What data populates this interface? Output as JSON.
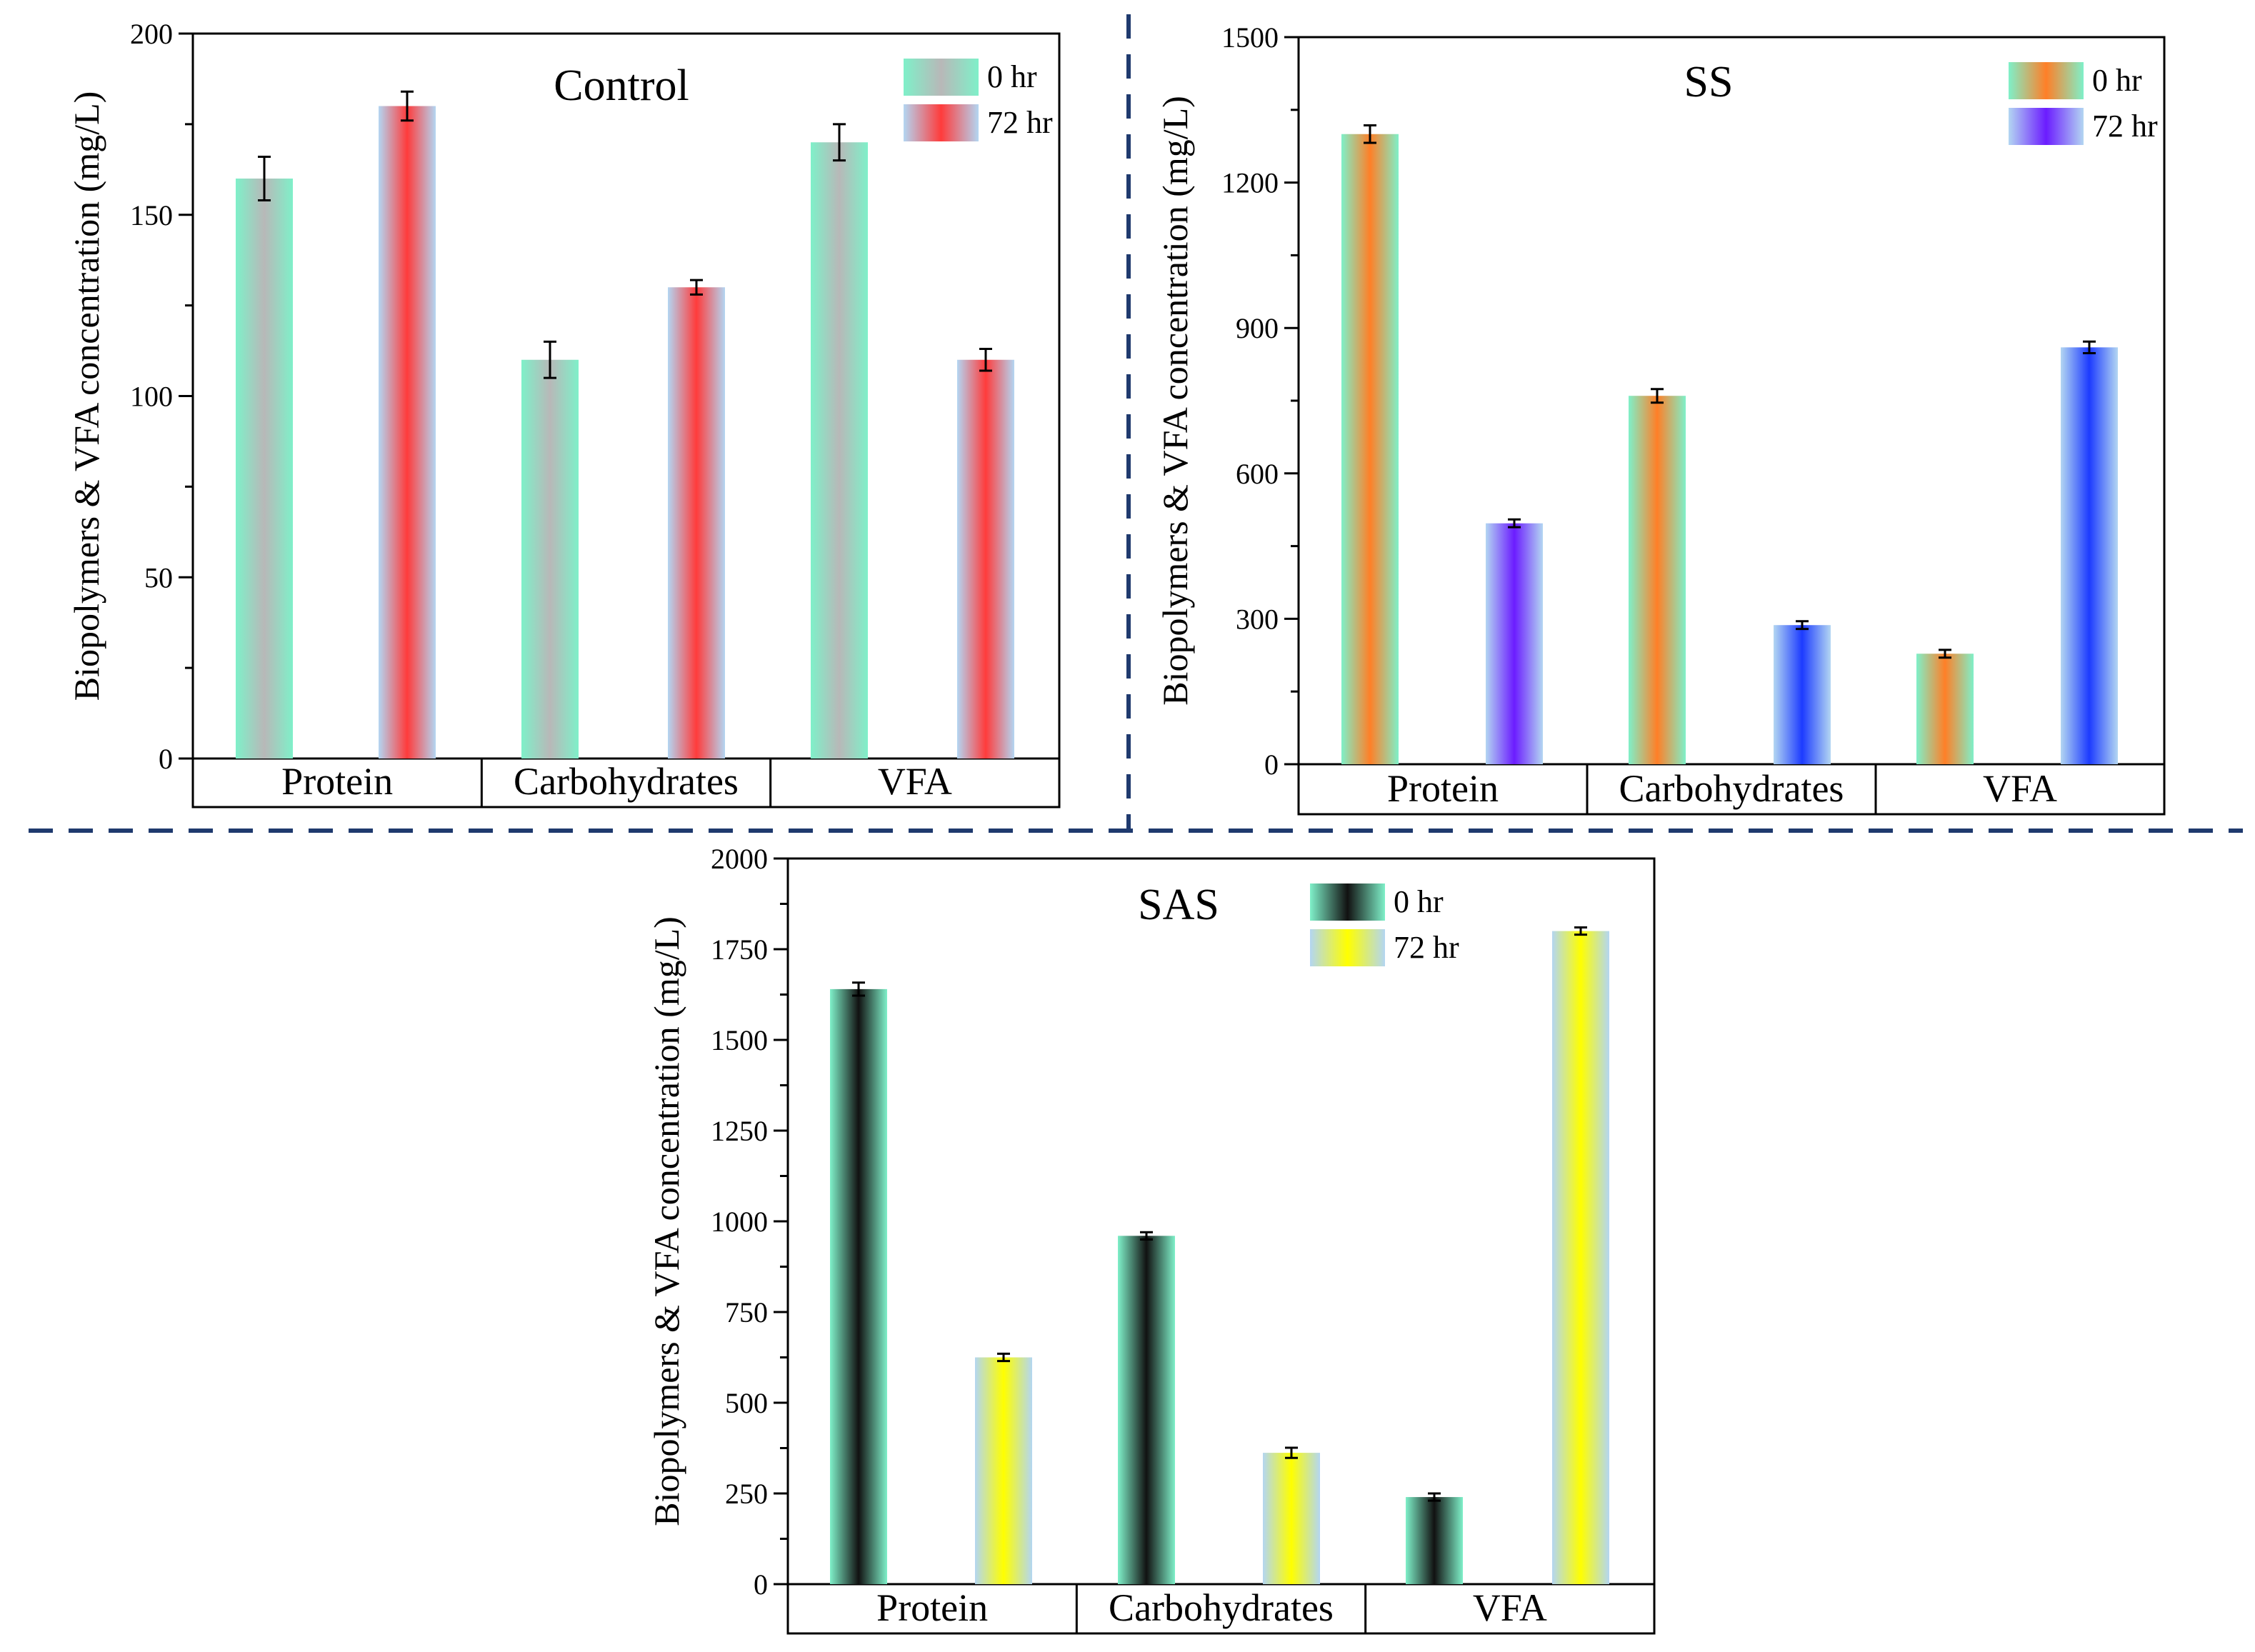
{
  "chart_data": [
    {
      "type": "bar",
      "title": "Control",
      "ylabel": "Biopolymers & VFA concentration (mg/L)",
      "xlabel": "",
      "categories": [
        "Protein",
        "Carbohydrates",
        "VFA"
      ],
      "ylim": [
        0,
        200
      ],
      "yticks": [
        0,
        50,
        100,
        150,
        200
      ],
      "minor_ticks": true,
      "legend_position": "top-right",
      "series": [
        {
          "name": "0 hr",
          "values": [
            160,
            110,
            170
          ],
          "errors": [
            6,
            5,
            5
          ],
          "colors": [
            "#7ff0c9",
            "#b8b8b8"
          ]
        },
        {
          "name": "72 hr",
          "values": [
            180,
            130,
            110
          ],
          "errors": [
            4,
            2,
            3
          ],
          "colors": [
            "#b3d6f2",
            "#ff3b3b"
          ]
        }
      ]
    },
    {
      "type": "bar",
      "title": "SS",
      "ylabel": "Biopolymers & VFA concentration (mg/L)",
      "xlabel": "",
      "categories": [
        "Protein",
        "Carbohydrates",
        "VFA"
      ],
      "ylim": [
        0,
        1500
      ],
      "yticks": [
        0,
        300,
        600,
        900,
        1200,
        1500
      ],
      "minor_ticks": true,
      "legend_position": "top-right",
      "series": [
        {
          "name": "0 hr",
          "values": [
            1300,
            760,
            228
          ],
          "errors": [
            18,
            14,
            8
          ],
          "colors": [
            "#7ff0c9",
            "#ff7f27"
          ]
        },
        {
          "name": "72 hr",
          "values": [
            497,
            287,
            860
          ],
          "errors": [
            8,
            8,
            12
          ],
          "colors": [
            "#b3d6f2",
            "#6b1cff"
          ],
          "alt_colors": [
            "#b3d6f2",
            "#1c3bff"
          ]
        }
      ]
    },
    {
      "type": "bar",
      "title": "SAS",
      "ylabel": "Biopolymers & VFA concentration (mg/L)",
      "xlabel": "",
      "categories": [
        "Protein",
        "Carbohydrates",
        "VFA"
      ],
      "ylim": [
        0,
        2000
      ],
      "yticks": [
        0,
        250,
        500,
        750,
        1000,
        1250,
        1500,
        1750,
        2000
      ],
      "minor_ticks": true,
      "legend_position": "top-right",
      "series": [
        {
          "name": "0 hr",
          "values": [
            1640,
            960,
            240
          ],
          "errors": [
            18,
            10,
            10
          ],
          "colors": [
            "#7ff0c9",
            "#111111"
          ]
        },
        {
          "name": "72 hr",
          "values": [
            625,
            362,
            1800
          ],
          "errors": [
            10,
            14,
            10
          ],
          "colors": [
            "#b3d6f2",
            "#ffff00"
          ]
        }
      ]
    }
  ],
  "separator_color": "#1f3a6e"
}
